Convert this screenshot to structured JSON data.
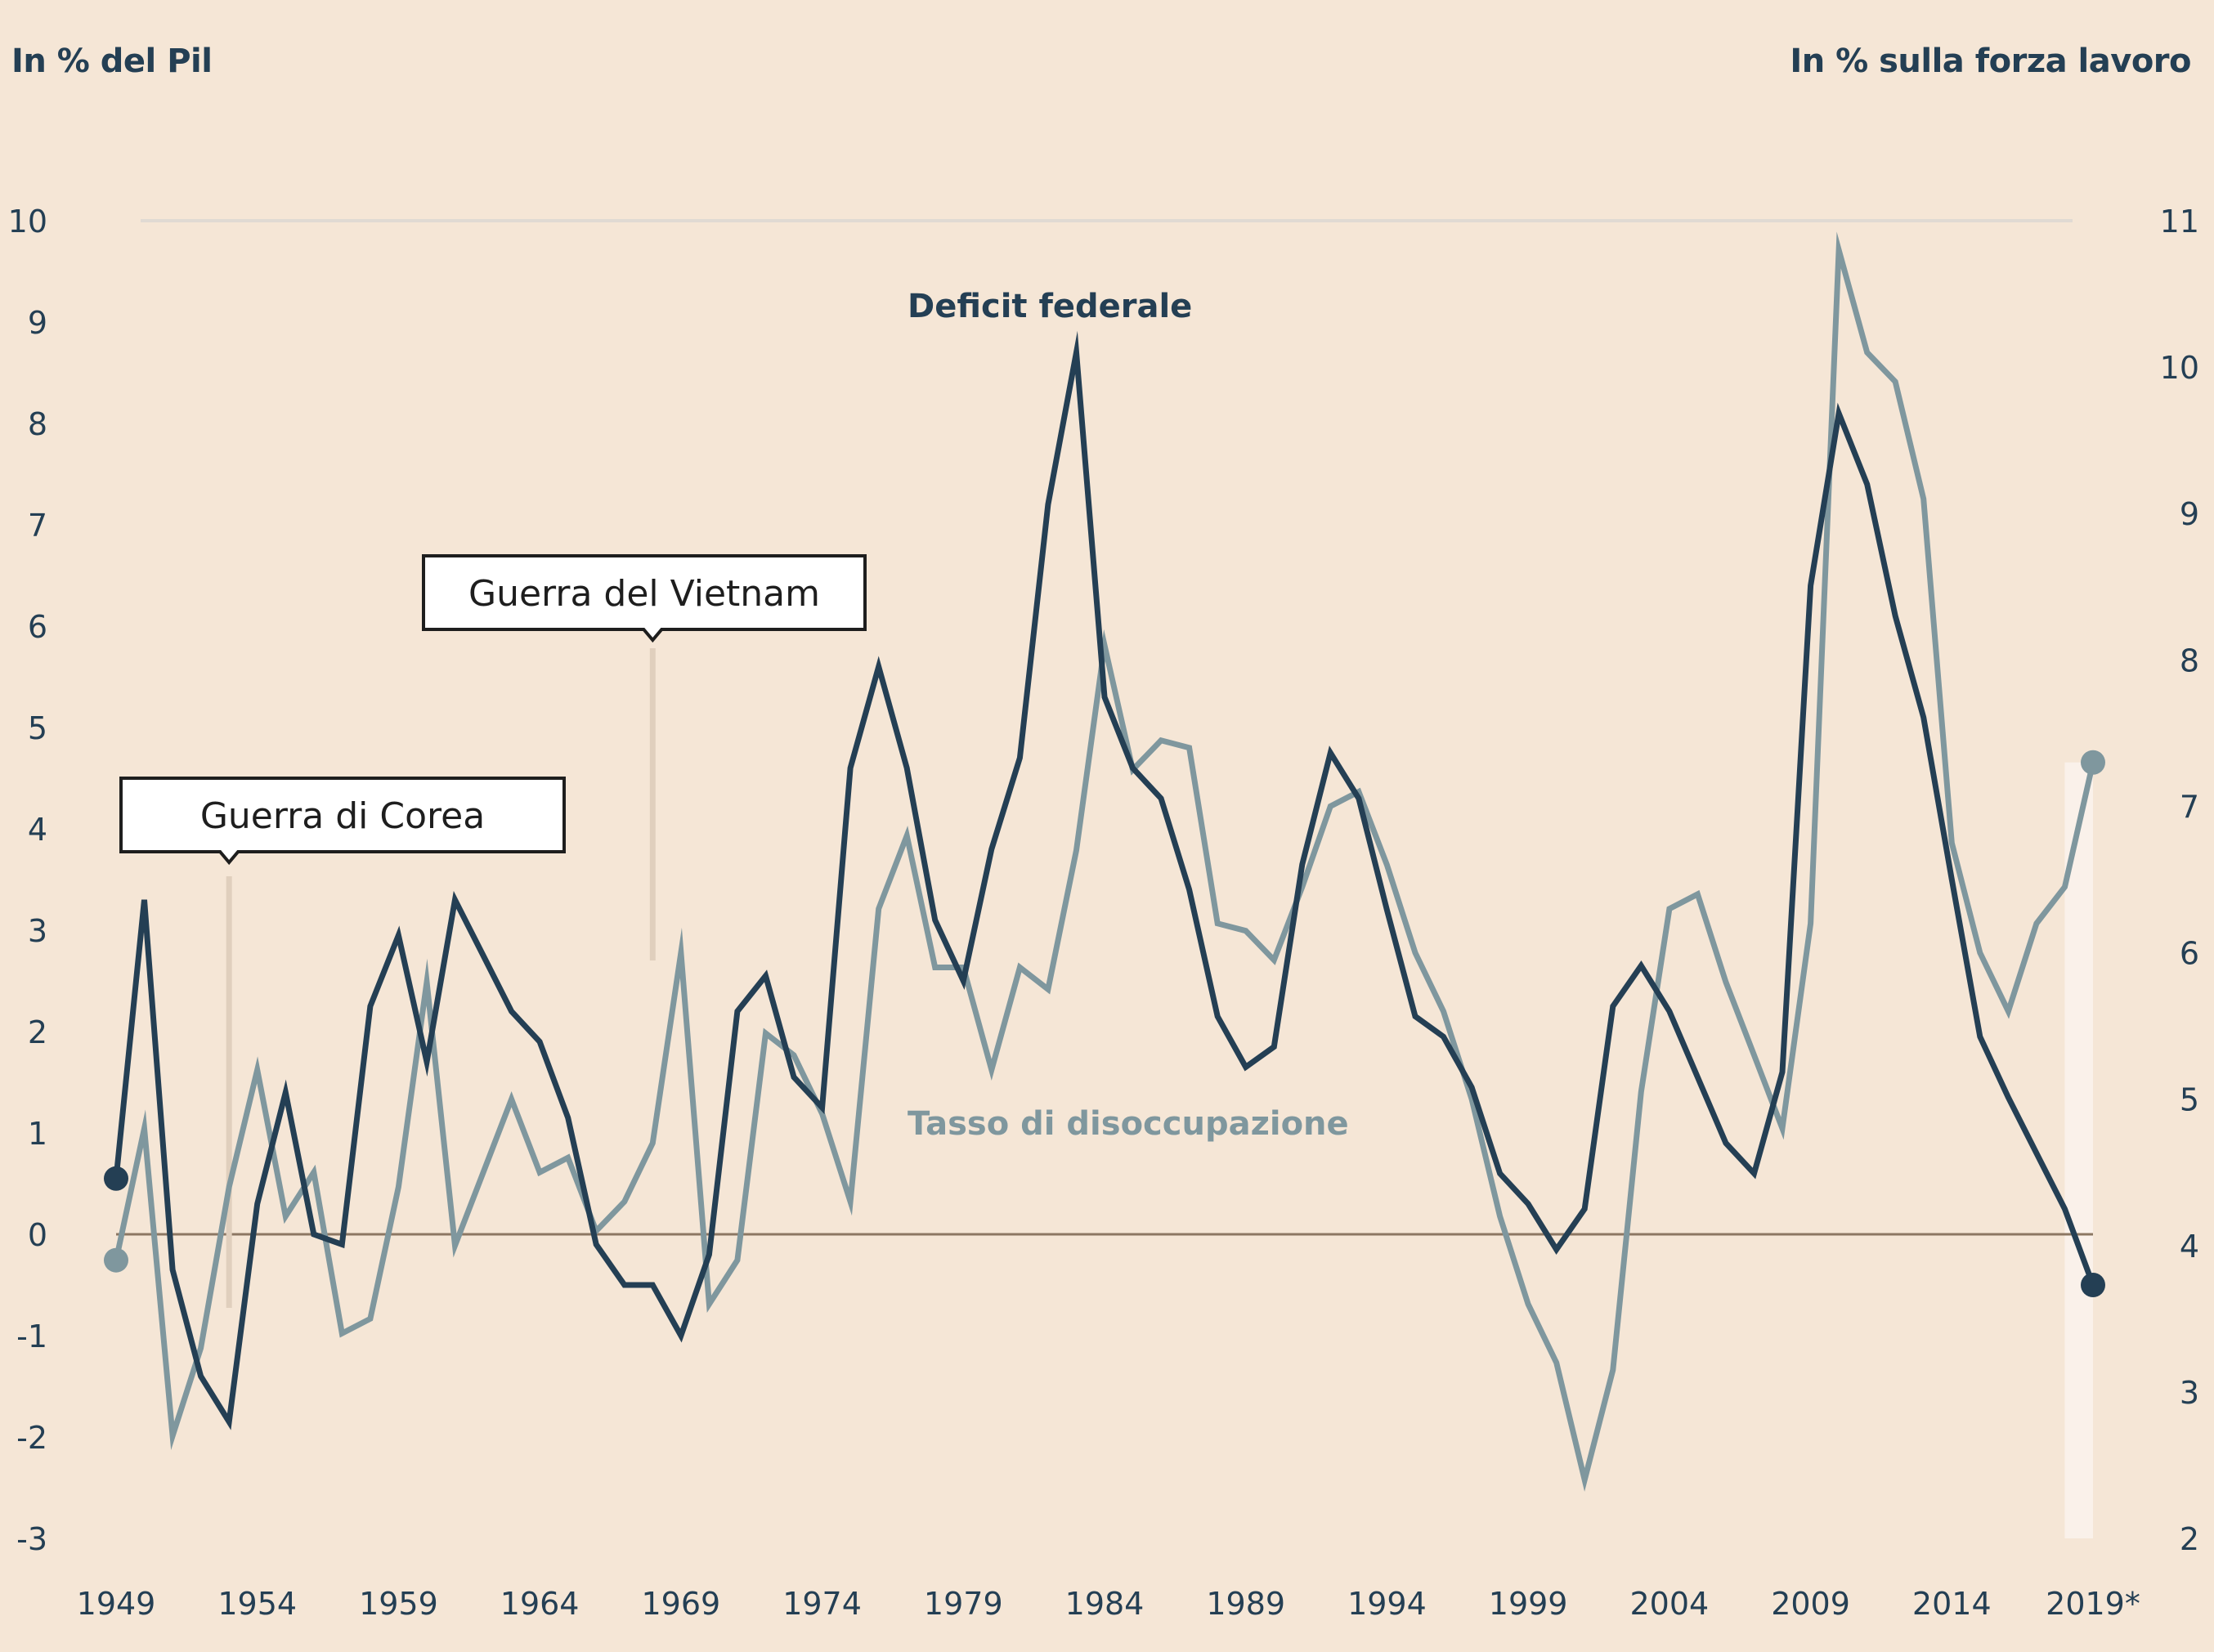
{
  "left_axis_title": "In % del Pil",
  "right_axis_title": "In % sulla forza lavoro",
  "colors": {
    "background": "#f5e6d6",
    "deficit": "#243f54",
    "unemployment": "#7f979e",
    "zero_line": "#8c7763",
    "gridline": "#e0dad3",
    "annotation_stem": "#e0cfbd",
    "forecast_band": "#faf1ea"
  },
  "annotations": [
    {
      "label": "Guerra di Corea",
      "year": 1953
    },
    {
      "label": "Guerra del Vietnam",
      "year": 1968
    }
  ],
  "chart_data": {
    "type": "line",
    "title": "",
    "xlabel": "",
    "ylabel": "In % del Pil",
    "ylabel_right": "In % sulla forza lavoro",
    "x_ticks": [
      "1949",
      "1954",
      "1959",
      "1964",
      "1969",
      "1974",
      "1979",
      "1984",
      "1989",
      "1994",
      "1999",
      "2004",
      "2009",
      "2014",
      "2019*"
    ],
    "ylim": [
      -3,
      10
    ],
    "ylim_right": [
      2,
      11
    ],
    "y_ticks": [
      "10",
      "9",
      "8",
      "7",
      "6",
      "5",
      "4",
      "3",
      "2",
      "1",
      "0",
      "-1",
      "-2",
      "-3"
    ],
    "y_ticks_right": [
      "11",
      "10",
      "9",
      "8",
      "7",
      "6",
      "5",
      "4",
      "3",
      "2"
    ],
    "x": [
      1949,
      1950,
      1951,
      1952,
      1953,
      1954,
      1955,
      1956,
      1957,
      1958,
      1959,
      1960,
      1961,
      1962,
      1963,
      1964,
      1965,
      1966,
      1967,
      1968,
      1969,
      1970,
      1971,
      1972,
      1973,
      1974,
      1975,
      1976,
      1977,
      1978,
      1979,
      1980,
      1981,
      1982,
      1983,
      1984,
      1985,
      1986,
      1987,
      1988,
      1989,
      1990,
      1991,
      1992,
      1993,
      1994,
      1995,
      1996,
      1997,
      1998,
      1999,
      2000,
      2001,
      2002,
      2003,
      2004,
      2005,
      2006,
      2007,
      2008,
      2009,
      2010,
      2011,
      2012,
      2013,
      2014,
      2015,
      2016,
      2017,
      2018,
      2019
    ],
    "forecast_from": 2018,
    "grid": false,
    "series": [
      {
        "name": "Deficit federale",
        "axis": "left",
        "values": [
          0.55,
          3.3,
          -0.35,
          -1.4,
          -1.85,
          0.3,
          1.4,
          0.0,
          -0.1,
          2.25,
          2.95,
          1.7,
          3.3,
          2.75,
          2.2,
          1.9,
          1.15,
          -0.1,
          -0.5,
          -0.5,
          -1.0,
          -0.2,
          2.2,
          2.55,
          1.55,
          1.25,
          4.6,
          5.6,
          4.6,
          3.1,
          2.5,
          3.8,
          4.7,
          7.2,
          8.7,
          5.3,
          4.6,
          4.3,
          3.4,
          2.15,
          1.65,
          1.85,
          3.65,
          4.75,
          4.3,
          3.2,
          2.15,
          1.95,
          1.45,
          0.6,
          0.3,
          -0.15,
          0.25,
          2.25,
          2.65,
          2.2,
          1.55,
          0.9,
          0.6,
          1.6,
          6.4,
          8.1,
          7.4,
          6.1,
          5.1,
          3.5,
          1.95,
          1.35,
          0.8,
          0.25,
          -0.5
        ]
      },
      {
        "name": "Tasso di disoccupazione",
        "axis": "right",
        "values": [
          3.9,
          4.8,
          2.7,
          3.3,
          4.4,
          5.2,
          4.2,
          4.5,
          3.4,
          3.5,
          4.4,
          5.8,
          4.0,
          4.5,
          5.0,
          4.5,
          4.6,
          4.1,
          4.3,
          4.7,
          6.0,
          3.6,
          3.9,
          5.45,
          5.3,
          4.9,
          4.3,
          6.3,
          6.8,
          5.9,
          5.9,
          5.2,
          5.9,
          5.75,
          6.7,
          8.1,
          7.25,
          7.45,
          7.4,
          6.2,
          6.15,
          5.95,
          6.45,
          7.0,
          7.1,
          6.6,
          6.0,
          5.6,
          5.0,
          4.2,
          3.6,
          3.2,
          2.4,
          3.15,
          5.05,
          6.3,
          6.4,
          5.8,
          5.3,
          4.8,
          6.2,
          10.8,
          10.1,
          9.9,
          9.1,
          6.75,
          6.0,
          5.6,
          6.2,
          6.45,
          7.3
        ]
      }
    ]
  }
}
